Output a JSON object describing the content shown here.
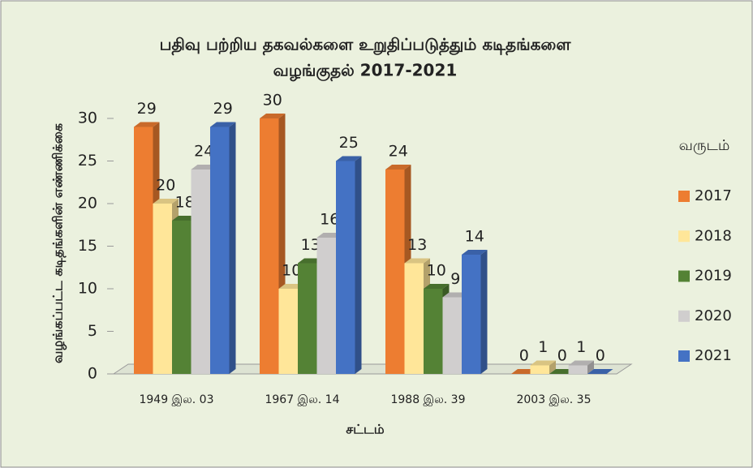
{
  "chart_data": {
    "type": "bar",
    "title": [
      "பதிவு பற்றிய தகவல்களை உறுதிப்படுத்தும் கடிதங்களை",
      "வழங்குதல் 2017-2021"
    ],
    "x_label": "சட்டம்",
    "y_label": "வழங்கப்பட்ட கடிதங்களின் எண்ணிக்கை",
    "legend_title": "வருடம்",
    "legend": "right",
    "categories": [
      "1949 இல. 03",
      "1967 இல. 14",
      "1988 இல. 39",
      "2003 இல. 35"
    ],
    "series": [
      {
        "name": "2017",
        "color": "#ed7d31",
        "values": [
          29,
          30,
          24,
          0
        ]
      },
      {
        "name": "2018",
        "color": "#ffe699",
        "values": [
          20,
          10,
          13,
          1
        ]
      },
      {
        "name": "2019",
        "color": "#548235",
        "values": [
          18,
          13,
          10,
          0
        ]
      },
      {
        "name": "2020",
        "color": "#d0cece",
        "values": [
          24,
          16,
          9,
          1
        ]
      },
      {
        "name": "2021",
        "color": "#4472c4",
        "values": [
          29,
          25,
          14,
          0
        ]
      }
    ],
    "ylim": [
      0,
      30
    ],
    "yticks": [
      0,
      5,
      10,
      15,
      20,
      25,
      30
    ]
  }
}
